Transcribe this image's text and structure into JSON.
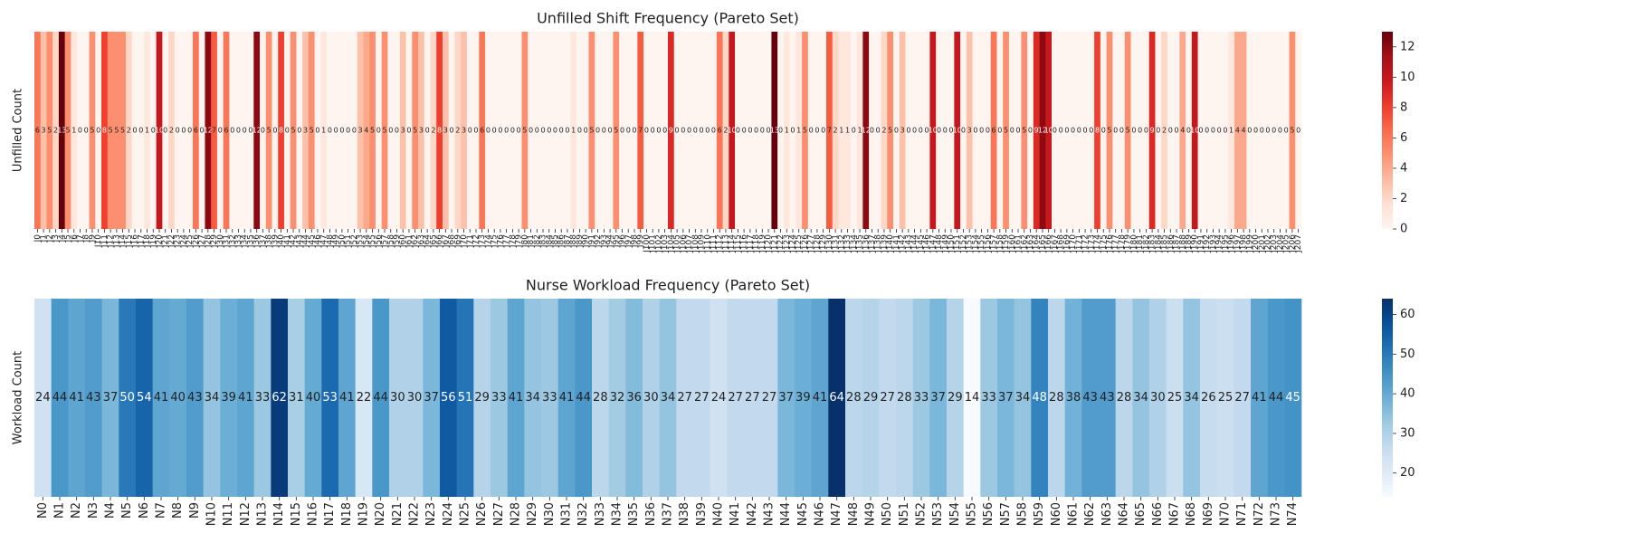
{
  "chart_data": [
    {
      "type": "heatmap",
      "title": "Unfilled Shift Frequency (Pareto Set)",
      "ylabel": "Unfilled Count",
      "colormap": "Reds",
      "categories": [
        "J0",
        "J1",
        "J2",
        "J3",
        "J4",
        "J5",
        "J6",
        "J7",
        "J8",
        "J9",
        "J10",
        "J11",
        "J12",
        "J13",
        "J14",
        "J15",
        "J16",
        "J17",
        "J18",
        "J19",
        "J20",
        "J21",
        "J22",
        "J23",
        "J24",
        "J25",
        "J26",
        "J27",
        "J28",
        "J29",
        "J30",
        "J31",
        "J32",
        "J33",
        "J34",
        "J35",
        "J36",
        "J37",
        "J38",
        "J39",
        "J40",
        "J41",
        "J42",
        "J43",
        "J44",
        "J45",
        "J46",
        "J47",
        "J48",
        "J49",
        "J50",
        "J51",
        "J52",
        "J53",
        "J54",
        "J55",
        "J56",
        "J57",
        "J58",
        "J59",
        "J60",
        "J61",
        "J62",
        "J63",
        "J64",
        "J65",
        "J66",
        "J67",
        "J68",
        "J69",
        "J70",
        "J71",
        "J72",
        "J73",
        "J74",
        "J75",
        "J76",
        "J77",
        "J78",
        "J79",
        "J80",
        "J81",
        "J82",
        "J83",
        "J84",
        "J85",
        "J86",
        "J87",
        "J88",
        "J89",
        "J90",
        "J91",
        "J92",
        "J93",
        "J94",
        "J95",
        "J96",
        "J97",
        "J98",
        "J99",
        "J100",
        "J101",
        "J102",
        "J103",
        "J104",
        "J105",
        "J106",
        "J107",
        "J108",
        "J109",
        "J110",
        "J111",
        "J112",
        "J113",
        "J114",
        "J115",
        "J116",
        "J117",
        "J118",
        "J119",
        "J120",
        "J121",
        "J122",
        "J123",
        "J124",
        "J125",
        "J126",
        "J127",
        "J128",
        "J129",
        "J130",
        "J131",
        "J132",
        "J133",
        "J134",
        "J135",
        "J136",
        "J137",
        "J138",
        "J139",
        "J140",
        "J141",
        "J142",
        "J143",
        "J144",
        "J145",
        "J146",
        "J147",
        "J148",
        "J149",
        "J150",
        "J151",
        "J152",
        "J153",
        "J154",
        "J155",
        "J156",
        "J157",
        "J158",
        "J159",
        "J160",
        "J161",
        "J162",
        "J163",
        "J164",
        "J165",
        "J166",
        "J167",
        "J168",
        "J169",
        "J170",
        "J171",
        "J172",
        "J173",
        "J174",
        "J175",
        "J176",
        "J177",
        "J178",
        "J179",
        "J180",
        "J181",
        "J182",
        "J183",
        "J184",
        "J185",
        "J186",
        "J187",
        "J188",
        "J189",
        "J190",
        "J191",
        "J192",
        "J193",
        "J194",
        "J195",
        "J196",
        "J197",
        "J198",
        "J199",
        "J200",
        "J201",
        "J202",
        "J203",
        "J204",
        "J205",
        "J206",
        "J207"
      ],
      "values": [
        6,
        3,
        5,
        2,
        13,
        5,
        1,
        0,
        0,
        5,
        0,
        8,
        5,
        5,
        5,
        2,
        0,
        0,
        1,
        0,
        10,
        0,
        2,
        0,
        0,
        0,
        6,
        0,
        12,
        7,
        0,
        6,
        0,
        0,
        0,
        0,
        12,
        0,
        5,
        0,
        8,
        0,
        5,
        0,
        3,
        5,
        0,
        1,
        0,
        0,
        0,
        0,
        0,
        3,
        4,
        5,
        0,
        5,
        0,
        0,
        3,
        0,
        5,
        3,
        0,
        2,
        8,
        3,
        0,
        2,
        3,
        0,
        0,
        6,
        0,
        0,
        0,
        0,
        0,
        0,
        5,
        0,
        0,
        0,
        0,
        0,
        0,
        0,
        1,
        0,
        0,
        5,
        0,
        0,
        0,
        5,
        0,
        0,
        0,
        7,
        0,
        0,
        0,
        0,
        9,
        0,
        0,
        0,
        0,
        0,
        0,
        0,
        6,
        2,
        10,
        0,
        0,
        0,
        0,
        0,
        0,
        13,
        0,
        1,
        0,
        1,
        5,
        0,
        0,
        0,
        7,
        2,
        1,
        1,
        0,
        1,
        12,
        0,
        0,
        2,
        5,
        0,
        3,
        0,
        0,
        0,
        0,
        10,
        0,
        0,
        0,
        10,
        0,
        3,
        0,
        0,
        0,
        6,
        0,
        5,
        0,
        0,
        5,
        0,
        9,
        12,
        10,
        0,
        0,
        0,
        0,
        0,
        0,
        0,
        8,
        0,
        5,
        0,
        0,
        5,
        0,
        0,
        0,
        9,
        0,
        2,
        0,
        0,
        4,
        0,
        10,
        0,
        0,
        0,
        0,
        0,
        1,
        4,
        4,
        0,
        0,
        0,
        0,
        0,
        0,
        0,
        5,
        0
      ],
      "clim": [
        0,
        13
      ],
      "cticks": [
        0,
        2,
        4,
        6,
        8,
        10,
        12
      ]
    },
    {
      "type": "heatmap",
      "title": "Nurse Workload Frequency (Pareto Set)",
      "ylabel": "Workload Count",
      "colormap": "Blues",
      "categories": [
        "N0",
        "N1",
        "N2",
        "N3",
        "N4",
        "N5",
        "N6",
        "N7",
        "N8",
        "N9",
        "N10",
        "N11",
        "N12",
        "N13",
        "N14",
        "N15",
        "N16",
        "N17",
        "N18",
        "N19",
        "N20",
        "N21",
        "N22",
        "N23",
        "N24",
        "N25",
        "N26",
        "N27",
        "N28",
        "N29",
        "N30",
        "N31",
        "N32",
        "N33",
        "N34",
        "N35",
        "N36",
        "N37",
        "N38",
        "N39",
        "N40",
        "N41",
        "N42",
        "N43",
        "N44",
        "N45",
        "N46",
        "N47",
        "N48",
        "N49",
        "N50",
        "N51",
        "N52",
        "N53",
        "N54",
        "N55",
        "N56",
        "N57",
        "N58",
        "N59",
        "N60",
        "N61",
        "N62",
        "N63",
        "N64",
        "N65",
        "N66",
        "N67",
        "N68",
        "N69",
        "N70",
        "N71",
        "N72",
        "N73",
        "N74"
      ],
      "values": [
        24,
        44,
        41,
        43,
        37,
        50,
        54,
        41,
        40,
        43,
        34,
        39,
        41,
        33,
        62,
        31,
        40,
        53,
        41,
        22,
        44,
        30,
        30,
        37,
        56,
        51,
        29,
        33,
        41,
        34,
        33,
        41,
        44,
        28,
        32,
        36,
        30,
        34,
        27,
        27,
        24,
        27,
        27,
        27,
        37,
        39,
        41,
        64,
        28,
        29,
        27,
        28,
        33,
        37,
        29,
        14,
        33,
        37,
        34,
        48,
        28,
        38,
        43,
        43,
        28,
        34,
        30,
        25,
        34,
        26,
        25,
        27,
        41,
        44,
        45
      ],
      "clim": [
        14,
        64
      ],
      "cticks": [
        20,
        30,
        40,
        50,
        60
      ]
    }
  ]
}
